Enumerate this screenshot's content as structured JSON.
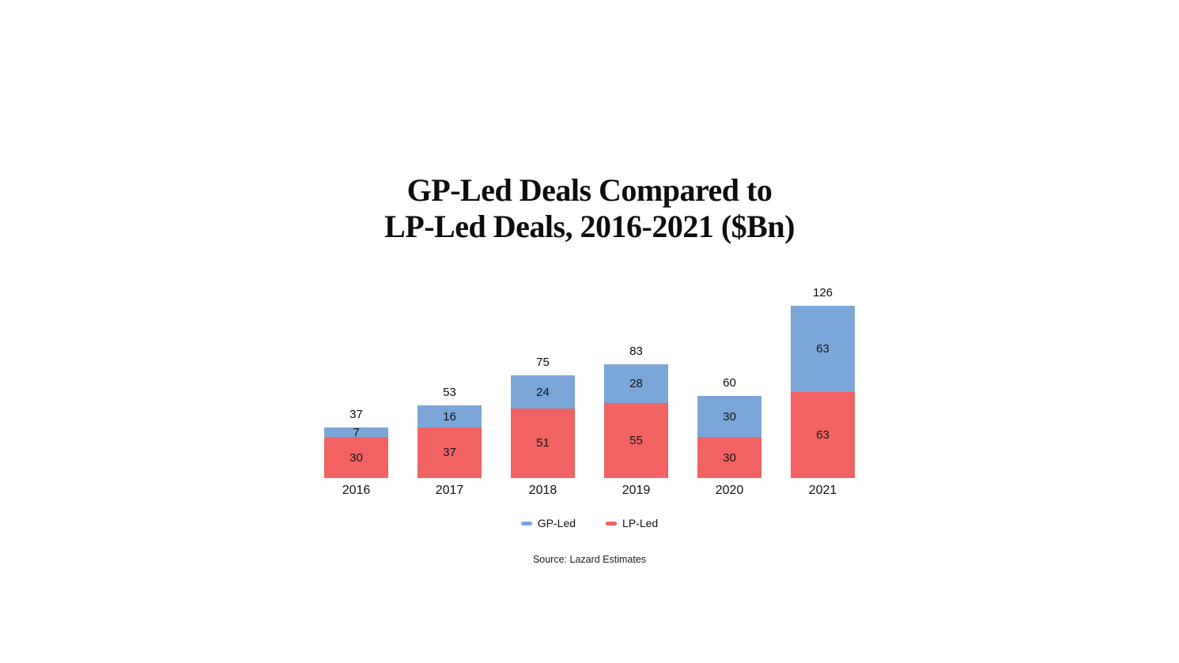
{
  "title": {
    "line1": "GP-Led Deals Compared to",
    "line2": "LP-Led Deals, 2016-2021 ($Bn)"
  },
  "chart_data": {
    "type": "bar",
    "stacked": true,
    "title": "GP-Led Deals Compared to LP-Led Deals, 2016-2021 ($Bn)",
    "categories": [
      "2016",
      "2017",
      "2018",
      "2019",
      "2020",
      "2021"
    ],
    "series": [
      {
        "name": "GP-Led",
        "color": "#7CA6D7",
        "values": [
          7,
          16,
          24,
          28,
          30,
          63
        ]
      },
      {
        "name": "LP-Led",
        "color": "#F16262",
        "values": [
          30,
          37,
          51,
          55,
          30,
          63
        ]
      }
    ],
    "totals": [
      37,
      53,
      75,
      83,
      60,
      126
    ],
    "xlabel": "",
    "ylabel": "",
    "ylim": [
      0,
      126
    ],
    "grid": false,
    "axes_hidden": true,
    "legend_position": "bottom",
    "value_labels": "inside-segments-and-total-above"
  },
  "legend": {
    "items": [
      {
        "label": "GP-Led",
        "color": "#7CA6D7"
      },
      {
        "label": "LP-Led",
        "color": "#F16262"
      }
    ]
  },
  "source": "Source: Lazard Estimates",
  "colors": {
    "gp_led": "#7CA6D7",
    "lp_led": "#F16262",
    "text": "#111111",
    "background": "#ffffff"
  }
}
